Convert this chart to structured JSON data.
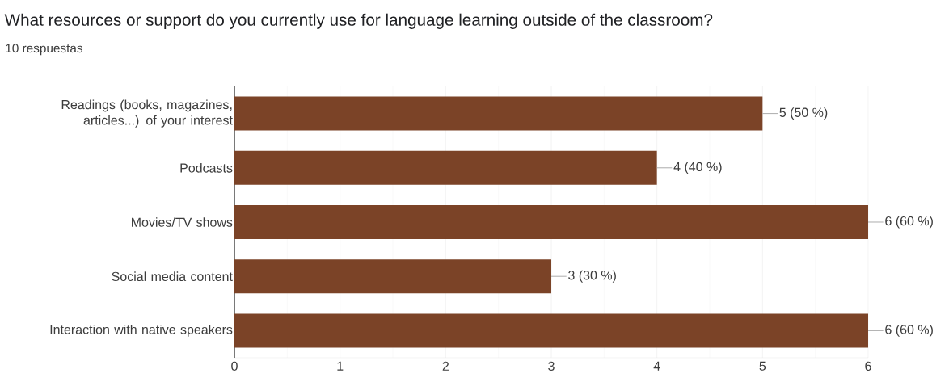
{
  "chart_data": {
    "type": "bar",
    "orientation": "horizontal",
    "title": "What resources or support do you currently use for language learning outside of the classroom?",
    "subtitle": "10 respuestas",
    "categories": [
      "Readings (books, magazines, articles...) of your interest",
      "Podcasts",
      "Movies/TV shows",
      "Social media content",
      "Interaction with native speakers"
    ],
    "values": [
      5,
      4,
      6,
      3,
      6
    ],
    "value_labels": [
      "5 (50 %)",
      "4 (40 %)",
      "6 (60 %)",
      "3 (30 %)",
      "6 (60 %)"
    ],
    "color": "#7b4327",
    "xlim": [
      0,
      6
    ],
    "xticks": [
      0,
      1,
      2,
      3,
      4,
      5,
      6
    ],
    "grid": "x"
  }
}
